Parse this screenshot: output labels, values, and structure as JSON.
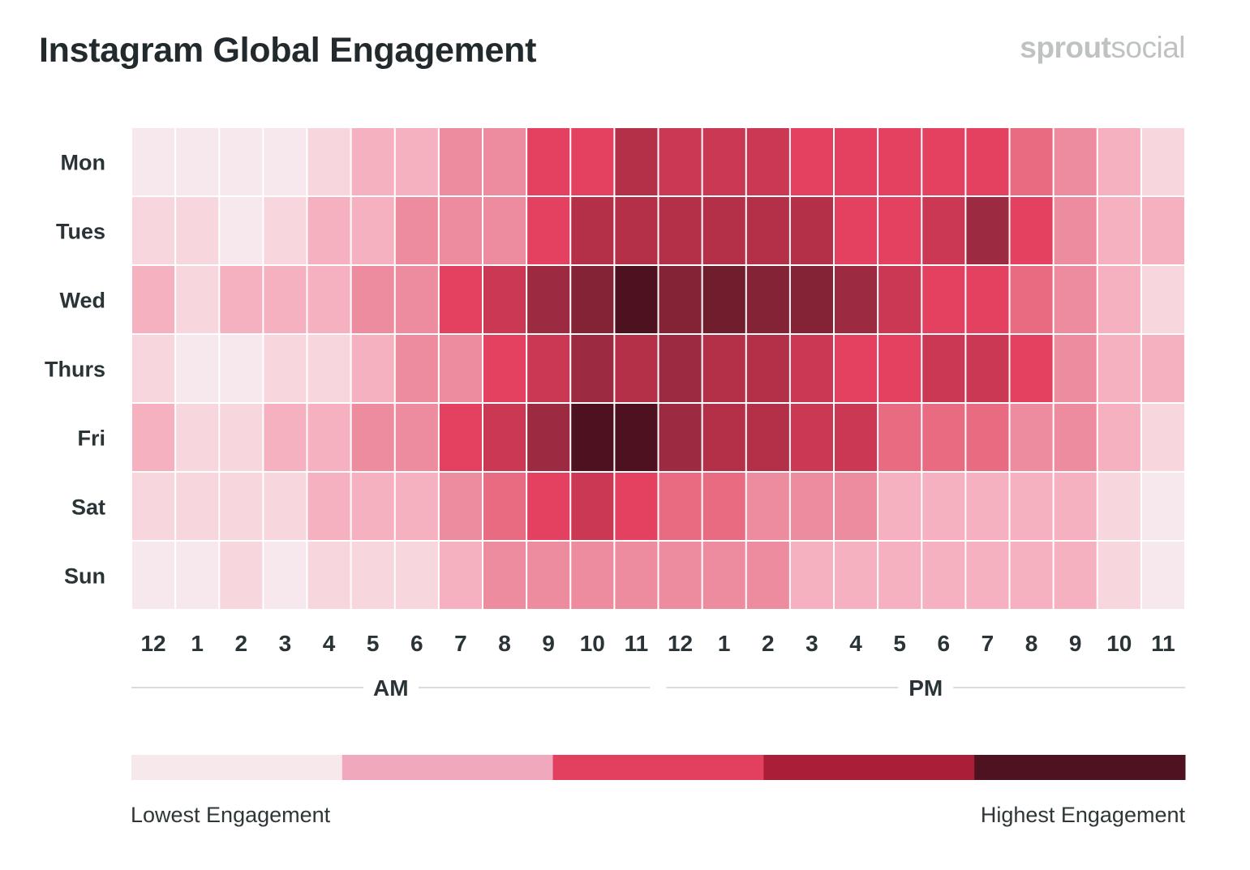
{
  "header": {
    "title": "Instagram Global Engagement",
    "brand_bold": "sprout",
    "brand_light": "social"
  },
  "legend": {
    "low_label": "Lowest Engagement",
    "high_label": "Highest Engagement",
    "colors": [
      "#f7e8ec",
      "#f0a8bc",
      "#e34060",
      "#ab1e38",
      "#4e1220"
    ]
  },
  "palette": [
    "#f6e8ec",
    "#f8d6de",
    "#f5b1c0",
    "#ee8c9f",
    "#e96b82",
    "#e4405f",
    "#ca3854",
    "#b43049",
    "#9c2a40",
    "#842336",
    "#701d2e",
    "#4d111f"
  ],
  "chart_data": {
    "type": "heatmap",
    "title": "Instagram Global Engagement",
    "rows": [
      "Mon",
      "Tues",
      "Wed",
      "Thurs",
      "Fri",
      "Sat",
      "Sun"
    ],
    "columns": [
      "12",
      "1",
      "2",
      "3",
      "4",
      "5",
      "6",
      "7",
      "8",
      "9",
      "10",
      "11",
      "12",
      "1",
      "2",
      "3",
      "4",
      "5",
      "6",
      "7",
      "8",
      "9",
      "10",
      "11"
    ],
    "column_groups": [
      {
        "label": "AM",
        "span": 12
      },
      {
        "label": "PM",
        "span": 12
      }
    ],
    "scale": "0 = lowest engagement, 11 = highest engagement",
    "values": [
      [
        0,
        0,
        0,
        0,
        1,
        2,
        2,
        3,
        3,
        5,
        5,
        7,
        6,
        6,
        6,
        5,
        5,
        5,
        5,
        5,
        4,
        3,
        2,
        1
      ],
      [
        1,
        1,
        0,
        1,
        2,
        2,
        3,
        3,
        3,
        5,
        7,
        7,
        7,
        7,
        7,
        7,
        5,
        5,
        6,
        8,
        5,
        3,
        2,
        2
      ],
      [
        2,
        1,
        2,
        2,
        2,
        3,
        3,
        5,
        6,
        8,
        9,
        11,
        9,
        10,
        9,
        9,
        8,
        6,
        5,
        5,
        4,
        3,
        2,
        1
      ],
      [
        1,
        0,
        0,
        1,
        1,
        2,
        3,
        3,
        5,
        6,
        8,
        7,
        8,
        7,
        7,
        6,
        5,
        5,
        6,
        6,
        5,
        3,
        2,
        2
      ],
      [
        2,
        1,
        1,
        2,
        2,
        3,
        3,
        5,
        6,
        8,
        11,
        11,
        8,
        7,
        7,
        6,
        6,
        4,
        4,
        4,
        3,
        3,
        2,
        1
      ],
      [
        1,
        1,
        1,
        1,
        2,
        2,
        2,
        3,
        4,
        5,
        6,
        5,
        4,
        4,
        3,
        3,
        3,
        2,
        2,
        2,
        2,
        2,
        1,
        0
      ],
      [
        0,
        0,
        1,
        0,
        1,
        1,
        1,
        2,
        3,
        3,
        3,
        3,
        3,
        3,
        3,
        2,
        2,
        2,
        2,
        2,
        2,
        2,
        1,
        0
      ]
    ]
  }
}
